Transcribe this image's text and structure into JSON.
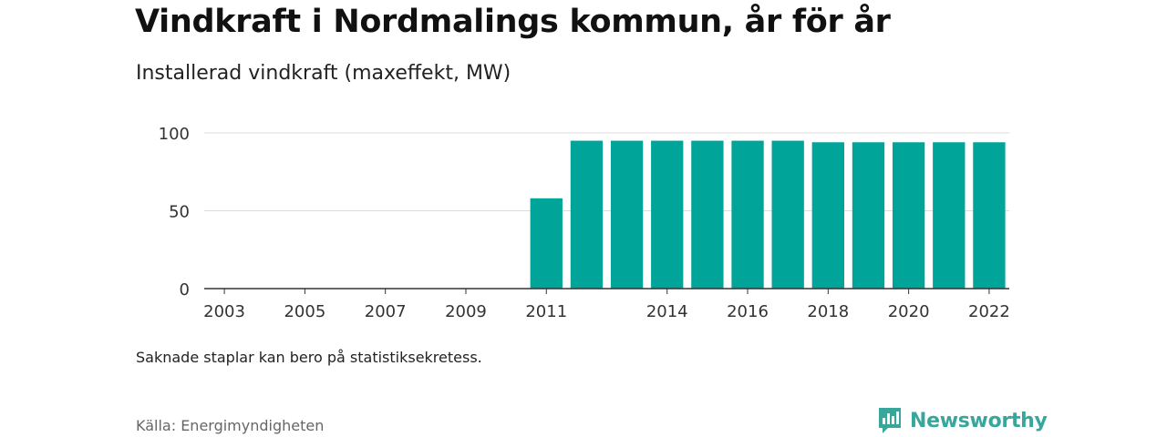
{
  "title": "Vindkraft i Nordmalings kommun, år för år",
  "subtitle": "Installerad vindkraft (maxeffekt, MW)",
  "note": "Saknade staplar kan bero på statistiksekretess.",
  "source": "Källa: Energimyndigheten",
  "brand": {
    "name": "Newsworthy",
    "color": "#37a79c",
    "icon": "newsworthy-logo-icon"
  },
  "chart_data": {
    "type": "bar",
    "categories": [
      "2003",
      "2004",
      "2005",
      "2006",
      "2007",
      "2008",
      "2009",
      "2010",
      "2011",
      "2012",
      "2013",
      "2014",
      "2015",
      "2016",
      "2017",
      "2018",
      "2019",
      "2020",
      "2021",
      "2022"
    ],
    "x_tick_labels": [
      "2003",
      "2005",
      "2007",
      "2009",
      "2011",
      "2014",
      "2016",
      "2018",
      "2020",
      "2022"
    ],
    "values": [
      null,
      null,
      null,
      null,
      null,
      null,
      null,
      null,
      58,
      95,
      95,
      95,
      95,
      95,
      95,
      94,
      94,
      94,
      94,
      94
    ],
    "y_ticks": [
      0,
      50,
      100
    ],
    "ylim": [
      0,
      100
    ],
    "grid": true,
    "bar_color": "#00a499"
  }
}
